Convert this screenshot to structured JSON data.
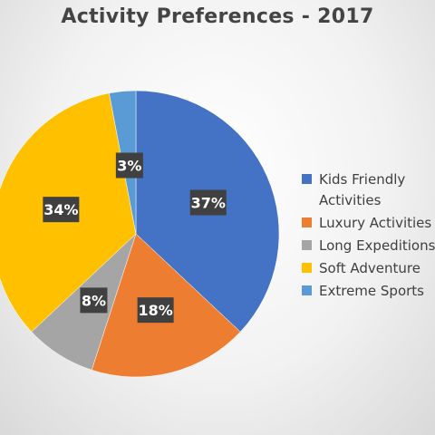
{
  "chart_data": {
    "type": "pie",
    "title": "Activity Preferences - 2017",
    "slices": [
      {
        "name": "Kids Friendly Activities",
        "value": 37,
        "label": "37%",
        "color": "#4472C4"
      },
      {
        "name": "Luxury Activities",
        "value": 18,
        "label": "18%",
        "color": "#ED7D31"
      },
      {
        "name": "Long Expeditions",
        "value": 8,
        "label": "8%",
        "color": "#A5A5A5"
      },
      {
        "name": "Soft Adventure",
        "value": 34,
        "label": "34%",
        "color": "#FFC000"
      },
      {
        "name": "Extreme Sports",
        "value": 3,
        "label": "3%",
        "color": "#5B9BD5"
      }
    ],
    "legend_position": "right"
  }
}
